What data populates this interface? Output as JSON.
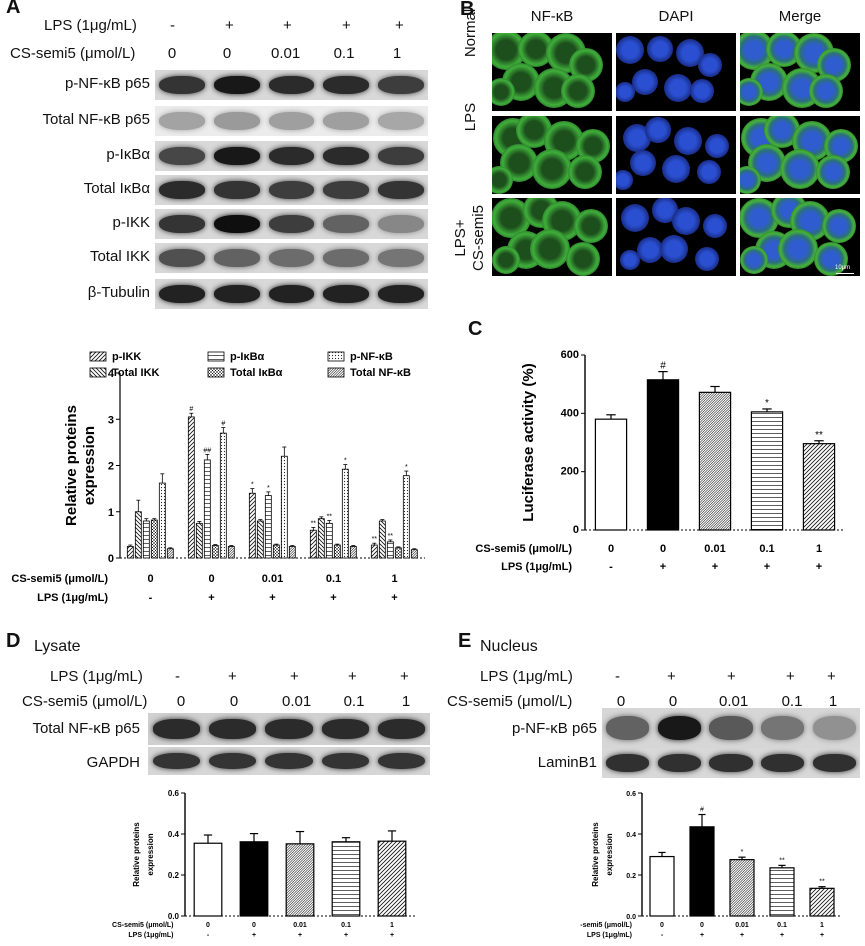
{
  "panelA": {
    "label": "A",
    "lps_label": "LPS (1μg/mL)",
    "cs_label": "CS-semi5 (μmol/L)",
    "lps": [
      "-",
      "+",
      "+",
      "+",
      "+"
    ],
    "cs": [
      "0",
      "0",
      "0.01",
      "0.1",
      "1"
    ],
    "blots": [
      "p-NF-κB p65",
      "Total NF-κB p65",
      "p-IκBα",
      "Total IκBα",
      "p-IKK",
      "Total IKK",
      "β-Tubulin"
    ],
    "chart": {
      "ylabel": "Relative proteins expression",
      "legend": [
        "p-IKK",
        "Total IKK",
        "p-IκBα",
        "Total IκBα",
        "p-NF-κB",
        "Total NF-κB"
      ],
      "groups_cs": [
        "0",
        "0",
        "0.01",
        "0.1",
        "1"
      ],
      "groups_lps": [
        "-",
        "+",
        "+",
        "+",
        "+"
      ],
      "row_cs_label": "CS-semi5 (μmol/L)",
      "row_lps_label": "LPS (1μg/mL)"
    }
  },
  "panelB": {
    "label": "B",
    "cols": [
      "NF-κB",
      "DAPI",
      "Merge"
    ],
    "rows": [
      "Normal",
      "LPS",
      "LPS+",
      "CS-semi5"
    ],
    "scale": "10μm"
  },
  "panelC": {
    "label": "C",
    "ylabel": "Luciferase activity (%)",
    "row_cs_label": "CS-semi5 (μmol/L)",
    "row_lps_label": "LPS (1μg/mL)",
    "cs": [
      "0",
      "0",
      "0.01",
      "0.1",
      "1"
    ],
    "lps": [
      "-",
      "+",
      "+",
      "+",
      "+"
    ]
  },
  "panelD": {
    "label": "D",
    "title": "Lysate",
    "lps_label": "LPS (1μg/mL)",
    "cs_label": "CS-semi5 (μmol/L)",
    "lps": [
      "-",
      "+",
      "+",
      "+",
      "+"
    ],
    "cs": [
      "0",
      "0",
      "0.01",
      "0.1",
      "1"
    ],
    "blots": [
      "Total NF-κB p65",
      "GAPDH"
    ],
    "ylabel": "Relative proteins expression",
    "row_cs_label": "CS-semi5 (μmol/L)",
    "row_lps_label": "LPS (1μg/mL)"
  },
  "panelE": {
    "label": "E",
    "title": "Nucleus",
    "lps_label": "LPS (1μg/mL)",
    "cs_label": "CS-semi5 (μmol/L)",
    "lps": [
      "-",
      "+",
      "+",
      "+",
      "+"
    ],
    "cs": [
      "0",
      "0",
      "0.01",
      "0.1",
      "1"
    ],
    "blots": [
      "p-NF-κB p65",
      "LaminB1"
    ],
    "ylabel": "Relative proteins expression",
    "row_cs_label": "CS-semi5 (μmol/L)",
    "row_lps_label": "LPS (1μg/mL)"
  },
  "chart_data": [
    {
      "id": "A-bar",
      "type": "bar",
      "categories": [
        "0/-",
        "0/+",
        "0.01/+",
        "0.1/+",
        "1/+"
      ],
      "ylim": [
        0,
        4
      ],
      "yticks": [
        "0",
        "1",
        "2",
        "3",
        "4"
      ],
      "series": [
        {
          "name": "p-IKK",
          "values": [
            0.25,
            3.05,
            1.4,
            0.6,
            0.28
          ],
          "err": [
            0.03,
            0.08,
            0.1,
            0.06,
            0.04
          ],
          "sig": [
            "",
            "#",
            "*",
            "**",
            "**"
          ]
        },
        {
          "name": "Total IKK",
          "values": [
            1.0,
            0.75,
            0.8,
            0.85,
            0.8
          ],
          "err": [
            0.25,
            0.04,
            0.03,
            0.04,
            0.03
          ],
          "sig": [
            "",
            "",
            "",
            "",
            ""
          ]
        },
        {
          "name": "p-IκBα",
          "values": [
            0.8,
            2.12,
            1.35,
            0.75,
            0.35
          ],
          "err": [
            0.05,
            0.12,
            0.08,
            0.06,
            0.04
          ],
          "sig": [
            "",
            "##",
            "*",
            "**",
            "**"
          ]
        },
        {
          "name": "Total IκBα",
          "values": [
            0.82,
            0.27,
            0.28,
            0.28,
            0.22
          ],
          "err": [
            0.03,
            0.02,
            0.02,
            0.02,
            0.02
          ],
          "sig": [
            "",
            "",
            "",
            "",
            ""
          ]
        },
        {
          "name": "p-NF-κB",
          "values": [
            1.62,
            2.7,
            2.2,
            1.92,
            1.78
          ],
          "err": [
            0.2,
            0.12,
            0.2,
            0.1,
            0.1
          ],
          "sig": [
            "",
            "#",
            "",
            "*",
            "*"
          ]
        },
        {
          "name": "Total NF-κB",
          "values": [
            0.2,
            0.25,
            0.25,
            0.25,
            0.18
          ],
          "err": [
            0.02,
            0.02,
            0.02,
            0.02,
            0.02
          ],
          "sig": [
            "",
            "",
            "",
            "",
            ""
          ]
        }
      ]
    },
    {
      "id": "C-bar",
      "type": "bar",
      "categories": [
        "0/-",
        "0/+",
        "0.01/+",
        "0.1/+",
        "1/+"
      ],
      "values": [
        380,
        515,
        472,
        405,
        296
      ],
      "err": [
        15,
        28,
        20,
        10,
        10
      ],
      "sig": [
        "",
        "#",
        "",
        "*",
        "**"
      ],
      "ylim": [
        0,
        600
      ],
      "yticks": [
        "0",
        "200",
        "400",
        "600"
      ]
    },
    {
      "id": "D-bar",
      "type": "bar",
      "categories": [
        "0/-",
        "0/+",
        "0.01/+",
        "0.1/+",
        "1/+"
      ],
      "values": [
        0.355,
        0.362,
        0.352,
        0.362,
        0.365
      ],
      "err": [
        0.04,
        0.04,
        0.06,
        0.02,
        0.05
      ],
      "sig": [
        "",
        "",
        "",
        "",
        ""
      ],
      "ylim": [
        0,
        0.6
      ],
      "yticks": [
        "0.0",
        "0.2",
        "0.4",
        "0.6"
      ]
    },
    {
      "id": "E-bar",
      "type": "bar",
      "categories": [
        "0/-",
        "0/+",
        "0.01/+",
        "0.1/+",
        "1/+"
      ],
      "values": [
        0.29,
        0.435,
        0.275,
        0.235,
        0.135
      ],
      "err": [
        0.02,
        0.06,
        0.012,
        0.012,
        0.008
      ],
      "sig": [
        "",
        "#",
        "*",
        "**",
        "**"
      ],
      "ylim": [
        0,
        0.6
      ],
      "yticks": [
        "0.0",
        "0.2",
        "0.4",
        "0.6"
      ]
    }
  ]
}
